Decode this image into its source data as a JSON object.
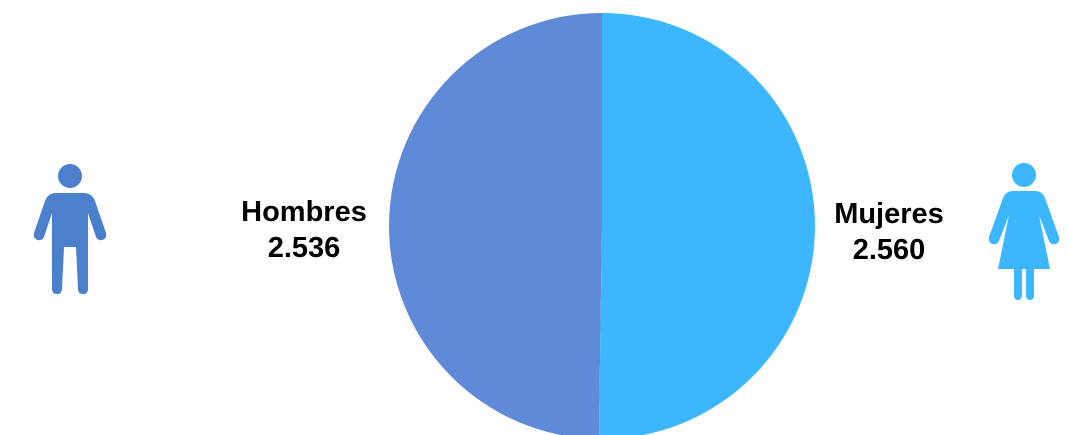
{
  "chart_data": {
    "type": "pie",
    "title": "",
    "slices": [
      {
        "label": "Hombres",
        "value": 2536,
        "value_label": "2.536",
        "color": "#5e8ad7"
      },
      {
        "label": "Mujeres",
        "value": 2560,
        "value_label": "2.560",
        "color": "#3cb7ff"
      }
    ],
    "legend": "none",
    "icons": [
      {
        "name": "male-person-icon",
        "color": "#4a80cc"
      },
      {
        "name": "female-person-icon",
        "color": "#3cb7ff"
      }
    ]
  }
}
